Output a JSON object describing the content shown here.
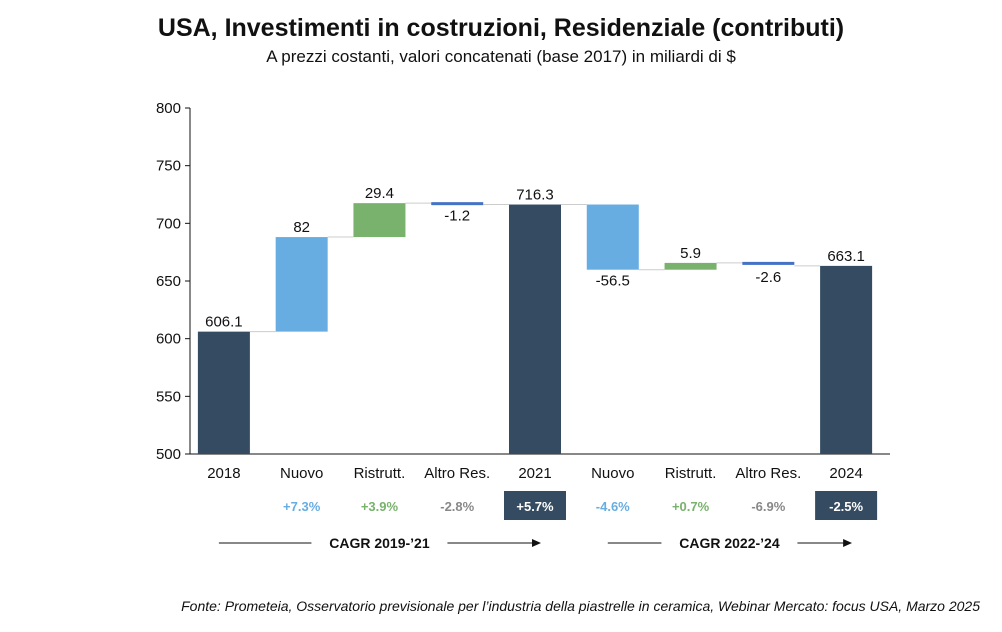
{
  "title": "USA, Investimenti in costruzioni, Residenziale (contributi)",
  "subtitle": "A prezzi costanti, valori concatenati (base 2017) in miliardi di $",
  "source": "Fonte: Prometeia, Osservatorio previsionale per l’industria della piastrelle in ceramica, Webinar Mercato: focus USA, Marzo 2025",
  "colors": {
    "total": "#344b61",
    "new": "#67ade2",
    "renov": "#78b26c",
    "other": "#4472c4",
    "cagr_other": "#888888",
    "connector": "#cccccc",
    "axis": "#111111"
  },
  "chart_data": {
    "type": "waterfall",
    "ylim": [
      500,
      800
    ],
    "yticks": [
      500,
      550,
      600,
      650,
      700,
      750,
      800
    ],
    "bars": [
      {
        "category": "2018",
        "kind": "total",
        "value": 606.1,
        "label": "606.1",
        "cagr": ""
      },
      {
        "category": "Nuovo",
        "kind": "new",
        "value": 82,
        "label": "82",
        "cagr": "+7.3%"
      },
      {
        "category": "Ristrutt.",
        "kind": "renov",
        "value": 29.4,
        "label": "29.4",
        "cagr": "+3.9%"
      },
      {
        "category": "Altro Res.",
        "kind": "other",
        "value": -1.2,
        "label": "-1.2",
        "cagr": "-2.8%"
      },
      {
        "category": "2021",
        "kind": "total",
        "value": 716.3,
        "label": "716.3",
        "cagr": "+5.7%"
      },
      {
        "category": "Nuovo",
        "kind": "new",
        "value": -56.5,
        "label": "-56.5",
        "cagr": "-4.6%"
      },
      {
        "category": "Ristrutt.",
        "kind": "renov",
        "value": 5.9,
        "label": "5.9",
        "cagr": "+0.7%"
      },
      {
        "category": "Altro Res.",
        "kind": "other",
        "value": -2.6,
        "label": "-2.6",
        "cagr": "-6.9%"
      },
      {
        "category": "2024",
        "kind": "total",
        "value": 663.1,
        "label": "663.1",
        "cagr": "-2.5%"
      }
    ],
    "spans": [
      {
        "label": "CAGR 2019-’21",
        "from_index": 0,
        "to_index": 4
      },
      {
        "label": "CAGR 2022-’24",
        "from_index": 5,
        "to_index": 8
      }
    ]
  }
}
